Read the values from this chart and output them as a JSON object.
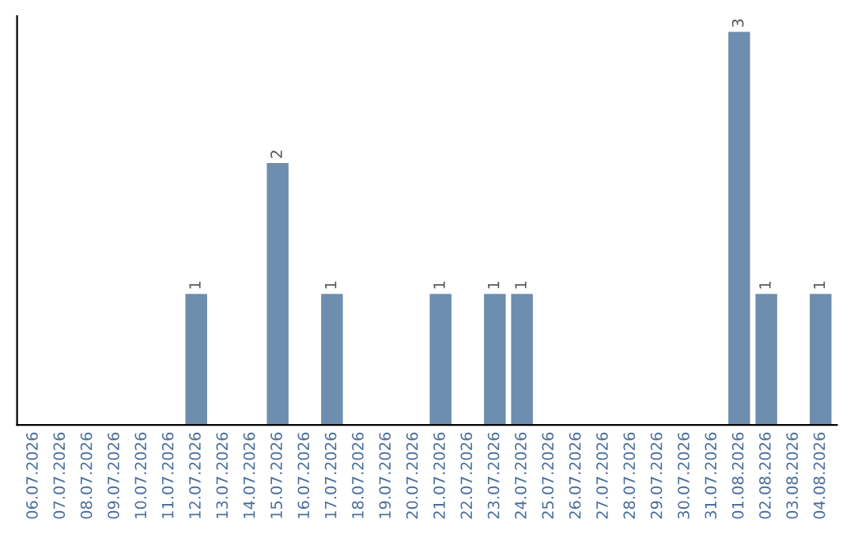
{
  "chart_data": {
    "type": "bar",
    "categories": [
      "06.07.2026",
      "07.07.2026",
      "08.07.2026",
      "09.07.2026",
      "10.07.2026",
      "11.07.2026",
      "12.07.2026",
      "13.07.2026",
      "14.07.2026",
      "15.07.2026",
      "16.07.2026",
      "17.07.2026",
      "18.07.2026",
      "19.07.2026",
      "20.07.2026",
      "21.07.2026",
      "22.07.2026",
      "23.07.2026",
      "24.07.2026",
      "25.07.2026",
      "26.07.2026",
      "27.07.2026",
      "28.07.2026",
      "29.07.2026",
      "30.07.2026",
      "31.07.2026",
      "01.08.2026",
      "02.08.2026",
      "03.08.2026",
      "04.08.2026"
    ],
    "values": [
      0,
      0,
      0,
      0,
      0,
      0,
      1,
      0,
      0,
      2,
      0,
      1,
      0,
      0,
      0,
      1,
      0,
      1,
      1,
      0,
      0,
      0,
      0,
      0,
      0,
      0,
      3,
      1,
      0,
      1
    ],
    "value_labels": [
      null,
      null,
      null,
      null,
      null,
      null,
      "1",
      null,
      null,
      "2",
      null,
      "1",
      null,
      null,
      null,
      "1",
      null,
      "1",
      "1",
      null,
      null,
      null,
      null,
      null,
      null,
      null,
      "3",
      "1",
      null,
      "1"
    ],
    "color": "#6d8eae",
    "tick_labels": "x",
    "grid": false,
    "legend": false
  }
}
